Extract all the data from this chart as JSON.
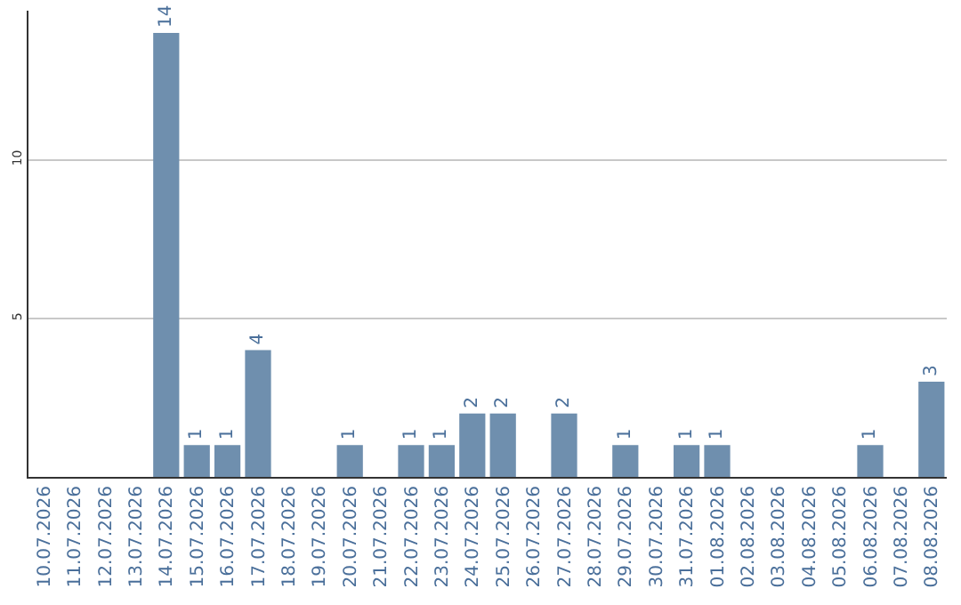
{
  "chart_data": {
    "type": "bar",
    "categories": [
      "10.07.2026",
      "11.07.2026",
      "12.07.2026",
      "13.07.2026",
      "14.07.2026",
      "15.07.2026",
      "16.07.2026",
      "17.07.2026",
      "18.07.2026",
      "19.07.2026",
      "20.07.2026",
      "21.07.2026",
      "22.07.2026",
      "23.07.2026",
      "24.07.2026",
      "25.07.2026",
      "26.07.2026",
      "27.07.2026",
      "28.07.2026",
      "29.07.2026",
      "30.07.2026",
      "31.07.2026",
      "01.08.2026",
      "02.08.2026",
      "03.08.2026",
      "04.08.2026",
      "05.08.2026",
      "06.08.2026",
      "07.08.2026",
      "08.08.2026"
    ],
    "values": [
      0,
      0,
      0,
      0,
      14,
      1,
      1,
      4,
      0,
      0,
      1,
      0,
      1,
      1,
      2,
      2,
      0,
      2,
      0,
      1,
      0,
      1,
      1,
      0,
      0,
      0,
      0,
      1,
      0,
      3
    ],
    "value_labels": [
      null,
      null,
      null,
      null,
      "14",
      "1",
      "1",
      "4",
      null,
      null,
      "1",
      null,
      "1",
      "1",
      "2",
      "2",
      null,
      "2",
      null,
      "1",
      null,
      "1",
      "1",
      null,
      null,
      null,
      null,
      "1",
      null,
      "3"
    ],
    "color": "#6f8fae",
    "ylim": [
      0,
      14.7
    ],
    "yticks": [
      5,
      10
    ],
    "grid": "y",
    "legend": false
  }
}
